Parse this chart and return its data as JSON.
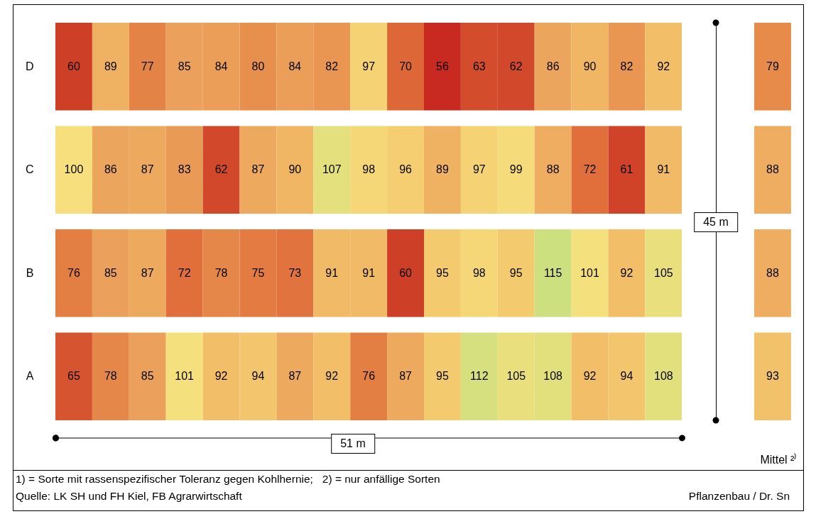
{
  "chart_data": [
    {
      "type": "heatmap",
      "categories": [
        null,
        null,
        null,
        null,
        null,
        null,
        null,
        null,
        null,
        null,
        null,
        null,
        null,
        null,
        null,
        null,
        null
      ],
      "y_categories": [
        "D",
        "C",
        "B",
        "A"
      ],
      "cells": [
        [
          60,
          89,
          77,
          85,
          84,
          80,
          84,
          82,
          97,
          70,
          56,
          63,
          62,
          86,
          90,
          82,
          92
        ],
        [
          100,
          86,
          87,
          83,
          62,
          87,
          90,
          107,
          98,
          96,
          89,
          97,
          99,
          88,
          72,
          61,
          91
        ],
        [
          76,
          85,
          87,
          72,
          78,
          75,
          73,
          91,
          91,
          60,
          95,
          98,
          95,
          115,
          101,
          92,
          105
        ],
        [
          65,
          78,
          85,
          101,
          92,
          94,
          87,
          92,
          76,
          87,
          95,
          112,
          105,
          108,
          92,
          94,
          108
        ]
      ],
      "data_labels": true,
      "tick_labels": "y",
      "annotations": [
        "51 m",
        "45 m",
        "1) = Sorte mit rassenspezifischer Toleranz gegen Kohlhernie;   2) = nur anfällige Sorten",
        "Quelle: LK SH und FH Kiel, FB Agrarwirtschaft",
        "Pflanzenbau / Dr. Sn"
      ]
    },
    {
      "type": "heatmap",
      "categories": [
        null
      ],
      "y_categories": [
        null,
        null,
        null,
        null
      ],
      "xlabel": "Mittel ²⁾",
      "cells": [
        [
          79
        ],
        [
          88
        ],
        [
          88
        ],
        [
          93
        ]
      ],
      "data_labels": true,
      "tick_labels": false
    }
  ]
}
